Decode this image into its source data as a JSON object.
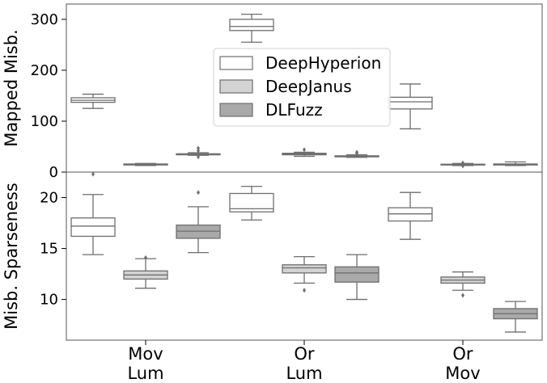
{
  "chart_data": [
    {
      "type": "box",
      "panel": "top",
      "ylabel": "Mapped Misb.",
      "ylim": [
        0,
        330
      ],
      "yticks": [
        0,
        100,
        200,
        300
      ],
      "categories": [
        "Mov\nLum",
        "Or\nLum",
        "Or\nMov"
      ],
      "legend": {
        "placement": "center",
        "entries": [
          "DeepHyperion",
          "DeepJanus",
          "DLFuzz"
        ]
      },
      "series": [
        {
          "name": "DeepHyperion",
          "color": "#ffffff",
          "boxes": [
            {
              "whislo": 125,
              "q1": 137,
              "med": 141,
              "q3": 146,
              "whishi": 153,
              "fliers": []
            },
            {
              "whislo": 255,
              "q1": 278,
              "med": 286,
              "q3": 300,
              "whishi": 310,
              "fliers": []
            },
            {
              "whislo": 85,
              "q1": 124,
              "med": 138,
              "q3": 147,
              "whislo_note": "",
              "whishi": 173,
              "fliers": []
            }
          ]
        },
        {
          "name": "DeepJanus",
          "color": "#d3d3d3",
          "boxes": [
            {
              "whislo": 13,
              "q1": 14,
              "med": 15,
              "q3": 16,
              "whishi": 17,
              "fliers": []
            },
            {
              "whislo": 31,
              "q1": 34,
              "med": 36,
              "q3": 37,
              "whishi": 39,
              "fliers": [
                44
              ]
            },
            {
              "whislo": 13,
              "q1": 14,
              "med": 15,
              "q3": 15.5,
              "whishi": 17,
              "fliers": [
                12,
                18
              ]
            }
          ]
        },
        {
          "name": "DLFuzz",
          "color": "#a9a9a9",
          "boxes": [
            {
              "whislo": 33,
              "q1": 34,
              "med": 35,
              "q3": 36,
              "whishi": 38,
              "fliers": [
                30,
                42,
                47
              ]
            },
            {
              "whislo": 29,
              "q1": 30,
              "med": 31,
              "q3": 32,
              "whishi": 34,
              "fliers": [
                37,
                39
              ]
            },
            {
              "whislo": 13,
              "q1": 14,
              "med": 15,
              "q3": 16,
              "whishi": 20,
              "fliers": []
            }
          ]
        }
      ]
    },
    {
      "type": "box",
      "panel": "bottom",
      "ylabel": "Misb. Sparseness",
      "ylim": [
        6.0,
        22.5
      ],
      "yticks": [
        10,
        15,
        20
      ],
      "categories": [
        "Mov\nLum",
        "Or\nLum",
        "Or\nMov"
      ],
      "series": [
        {
          "name": "DeepHyperion",
          "color": "#ffffff",
          "boxes": [
            {
              "whislo": 14.4,
              "q1": 16.2,
              "med": 17.2,
              "q3": 18.0,
              "whishi": 20.3,
              "fliers": [
                22.3
              ]
            },
            {
              "whislo": 17.8,
              "q1": 18.6,
              "med": 18.9,
              "q3": 20.4,
              "whishi": 21.1,
              "fliers": []
            },
            {
              "whislo": 15.9,
              "q1": 17.7,
              "med": 18.4,
              "q3": 19.0,
              "whishi": 20.5,
              "fliers": []
            }
          ]
        },
        {
          "name": "DeepJanus",
          "color": "#d3d3d3",
          "boxes": [
            {
              "whislo": 11.1,
              "q1": 12.0,
              "med": 12.4,
              "q3": 12.8,
              "whishi": 14.0,
              "fliers": [
                14.1
              ]
            },
            {
              "whislo": 11.6,
              "q1": 12.6,
              "med": 13.1,
              "q3": 13.4,
              "whishi": 14.2,
              "fliers": [
                10.9
              ]
            },
            {
              "whislo": 10.9,
              "q1": 11.6,
              "med": 11.9,
              "q3": 12.2,
              "whishi": 12.7,
              "fliers": [
                10.4
              ]
            }
          ]
        },
        {
          "name": "DLFuzz",
          "color": "#a9a9a9",
          "boxes": [
            {
              "whislo": 14.6,
              "q1": 16.0,
              "med": 16.7,
              "q3": 17.3,
              "whishi": 19.1,
              "fliers": [
                20.5
              ]
            },
            {
              "whislo": 10.0,
              "q1": 11.7,
              "med": 12.6,
              "q3": 13.2,
              "whishi": 14.4,
              "fliers": []
            },
            {
              "whislo": 6.8,
              "q1": 8.1,
              "med": 8.6,
              "q3": 9.1,
              "whishi": 9.8,
              "fliers": []
            }
          ]
        }
      ]
    }
  ]
}
